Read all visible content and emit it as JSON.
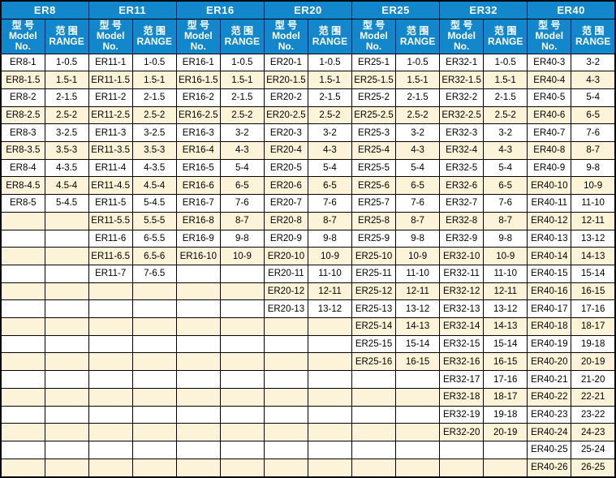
{
  "colors": {
    "header_blue": "#1287cb",
    "stripe_cream": "#fdf3d8",
    "grid": "#000000",
    "header_text": "#ffffff",
    "cell_text": "#000000"
  },
  "table": {
    "row_count": 24,
    "subheader": {
      "model_cn": "型 号",
      "model_en1": "Model",
      "model_en2": "No.",
      "range_cn": "范 围",
      "range_en": "RANGE"
    },
    "groups": [
      {
        "name": "ER8",
        "rows": [
          [
            "ER8-1",
            "1-0.5"
          ],
          [
            "ER8-1.5",
            "1.5-1"
          ],
          [
            "ER8-2",
            "2-1.5"
          ],
          [
            "ER8-2.5",
            "2.5-2"
          ],
          [
            "ER8-3",
            "3-2.5"
          ],
          [
            "ER8-3.5",
            "3.5-3"
          ],
          [
            "ER8-4",
            "4-3.5"
          ],
          [
            "ER8-4.5",
            "4.5-4"
          ],
          [
            "ER8-5",
            "5-4.5"
          ]
        ]
      },
      {
        "name": "ER11",
        "rows": [
          [
            "ER11-1",
            "1-0.5"
          ],
          [
            "ER11-1.5",
            "1.5-1"
          ],
          [
            "ER11-2",
            "2-1.5"
          ],
          [
            "ER11-2.5",
            "2.5-2"
          ],
          [
            "ER11-3",
            "3-2.5"
          ],
          [
            "ER11-3.5",
            "3.5-3"
          ],
          [
            "ER11-4",
            "4-3.5"
          ],
          [
            "ER11-4.5",
            "4.5-4"
          ],
          [
            "ER11-5",
            "5-4.5"
          ],
          [
            "ER11-5.5",
            "5.5-5"
          ],
          [
            "ER11-6",
            "6-5.5"
          ],
          [
            "ER11-6.5",
            "6.5-6"
          ],
          [
            "ER11-7",
            "7-6.5"
          ]
        ]
      },
      {
        "name": "ER16",
        "rows": [
          [
            "ER16-1",
            "1-0.5"
          ],
          [
            "ER16-1.5",
            "1.5-1"
          ],
          [
            "ER16-2",
            "2-1.5"
          ],
          [
            "ER16-2.5",
            "2.5-2"
          ],
          [
            "ER16-3",
            "3-2"
          ],
          [
            "ER16-4",
            "4-3"
          ],
          [
            "ER16-5",
            "5-4"
          ],
          [
            "ER16-6",
            "6-5"
          ],
          [
            "ER16-7",
            "7-6"
          ],
          [
            "ER16-8",
            "8-7"
          ],
          [
            "ER16-9",
            "9-8"
          ],
          [
            "ER16-10",
            "10-9"
          ]
        ]
      },
      {
        "name": "ER20",
        "rows": [
          [
            "ER20-1",
            "1-0.5"
          ],
          [
            "ER20-1.5",
            "1.5-1"
          ],
          [
            "ER20-2",
            "2-1.5"
          ],
          [
            "ER20-2.5",
            "2.5-2"
          ],
          [
            "ER20-3",
            "3-2"
          ],
          [
            "ER20-4",
            "4-3"
          ],
          [
            "ER20-5",
            "5-4"
          ],
          [
            "ER20-6",
            "6-5"
          ],
          [
            "ER20-7",
            "7-6"
          ],
          [
            "ER20-8",
            "8-7"
          ],
          [
            "ER20-9",
            "9-8"
          ],
          [
            "ER20-10",
            "10-9"
          ],
          [
            "ER20-11",
            "11-10"
          ],
          [
            "ER20-12",
            "12-11"
          ],
          [
            "ER20-13",
            "13-12"
          ]
        ]
      },
      {
        "name": "ER25",
        "rows": [
          [
            "ER25-1",
            "1-0.5"
          ],
          [
            "ER25-1.5",
            "1.5-1"
          ],
          [
            "ER25-2",
            "2-1.5"
          ],
          [
            "ER25-2.5",
            "2.5-2"
          ],
          [
            "ER25-3",
            "3-2"
          ],
          [
            "ER25-4",
            "4-3"
          ],
          [
            "ER25-5",
            "5-4"
          ],
          [
            "ER25-6",
            "6-5"
          ],
          [
            "ER25-7",
            "7-6"
          ],
          [
            "ER25-8",
            "8-7"
          ],
          [
            "ER25-9",
            "9-8"
          ],
          [
            "ER25-10",
            "10-9"
          ],
          [
            "ER25-11",
            "11-10"
          ],
          [
            "ER25-12",
            "12-11"
          ],
          [
            "ER25-13",
            "13-12"
          ],
          [
            "ER25-14",
            "14-13"
          ],
          [
            "ER25-15",
            "15-14"
          ],
          [
            "ER25-16",
            "16-15"
          ]
        ]
      },
      {
        "name": "ER32",
        "rows": [
          [
            "ER32-1",
            "1-0.5"
          ],
          [
            "ER32-1.5",
            "1.5-1"
          ],
          [
            "ER32-2",
            "2-1.5"
          ],
          [
            "ER32-2.5",
            "2.5-2"
          ],
          [
            "ER32-3",
            "3-2"
          ],
          [
            "ER32-4",
            "4-3"
          ],
          [
            "ER32-5",
            "5-4"
          ],
          [
            "ER32-6",
            "6-5"
          ],
          [
            "ER32-7",
            "7-6"
          ],
          [
            "ER32-8",
            "8-7"
          ],
          [
            "ER32-9",
            "9-8"
          ],
          [
            "ER32-10",
            "10-9"
          ],
          [
            "ER32-11",
            "11-10"
          ],
          [
            "ER32-12",
            "12-11"
          ],
          [
            "ER32-13",
            "13-12"
          ],
          [
            "ER32-14",
            "14-13"
          ],
          [
            "ER32-15",
            "15-14"
          ],
          [
            "ER32-16",
            "16-15"
          ],
          [
            "ER32-17",
            "17-16"
          ],
          [
            "ER32-18",
            "18-17"
          ],
          [
            "ER32-19",
            "19-18"
          ],
          [
            "ER32-20",
            "20-19"
          ]
        ]
      },
      {
        "name": "ER40",
        "rows": [
          [
            "ER40-3",
            "3-2"
          ],
          [
            "ER40-4",
            "4-3"
          ],
          [
            "ER40-5",
            "5-4"
          ],
          [
            "ER40-6",
            "6-5"
          ],
          [
            "ER40-7",
            "7-6"
          ],
          [
            "ER40-8",
            "8-7"
          ],
          [
            "ER40-9",
            "9-8"
          ],
          [
            "ER40-10",
            "10-9"
          ],
          [
            "ER40-11",
            "11-10"
          ],
          [
            "ER40-12",
            "12-11"
          ],
          [
            "ER40-13",
            "13-12"
          ],
          [
            "ER40-14",
            "14-13"
          ],
          [
            "ER40-15",
            "15-14"
          ],
          [
            "ER40-16",
            "16-15"
          ],
          [
            "ER40-17",
            "17-16"
          ],
          [
            "ER40-18",
            "18-17"
          ],
          [
            "ER40-19",
            "19-18"
          ],
          [
            "ER40-20",
            "20-19"
          ],
          [
            "ER40-21",
            "21-20"
          ],
          [
            "ER40-22",
            "22-21"
          ],
          [
            "ER40-23",
            "23-22"
          ],
          [
            "ER40-24",
            "24-23"
          ],
          [
            "ER40-25",
            "25-24"
          ],
          [
            "ER40-26",
            "26-25"
          ]
        ]
      }
    ]
  }
}
